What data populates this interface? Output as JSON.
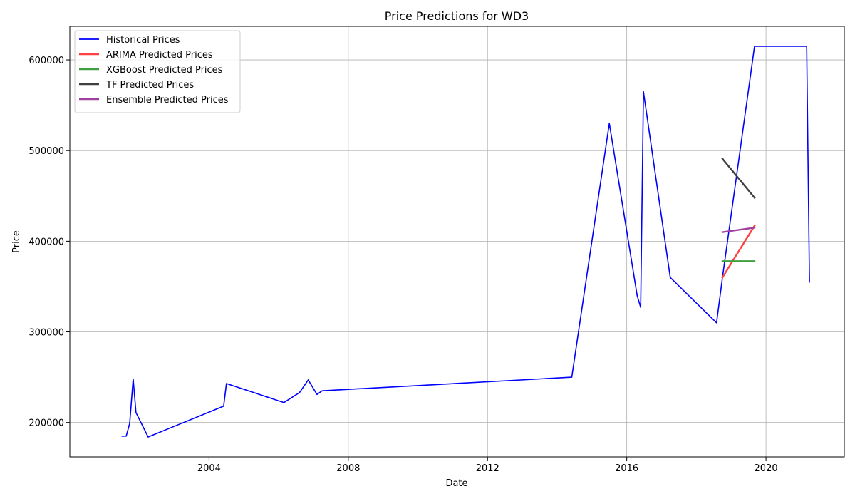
{
  "chart_data": {
    "type": "line",
    "title": "Price Predictions for WD3",
    "xlabel": "Date",
    "ylabel": "Price",
    "xlim": [
      2000.0,
      2022.25
    ],
    "ylim": [
      162000,
      637000
    ],
    "x_ticks": [
      2004,
      2008,
      2012,
      2016,
      2020
    ],
    "y_ticks": [
      200000,
      300000,
      400000,
      500000,
      600000
    ],
    "grid": true,
    "legend_position": "top-left",
    "series": [
      {
        "name": "Historical Prices",
        "color": "#0000ff",
        "points": [
          [
            2001.5,
            185000
          ],
          [
            2001.62,
            185000
          ],
          [
            2001.72,
            199000
          ],
          [
            2001.82,
            248000
          ],
          [
            2001.9,
            211000
          ],
          [
            2002.25,
            184000
          ],
          [
            2004.42,
            218000
          ],
          [
            2004.5,
            243000
          ],
          [
            2006.15,
            222000
          ],
          [
            2006.6,
            233000
          ],
          [
            2006.85,
            247000
          ],
          [
            2007.1,
            231000
          ],
          [
            2007.25,
            235000
          ],
          [
            2014.42,
            250000
          ],
          [
            2015.5,
            530000
          ],
          [
            2016.3,
            340000
          ],
          [
            2016.4,
            327000
          ],
          [
            2016.48,
            565000
          ],
          [
            2017.25,
            360000
          ],
          [
            2018.58,
            310000
          ],
          [
            2018.75,
            360000
          ],
          [
            2019.67,
            615000
          ],
          [
            2021.17,
            615000
          ],
          [
            2021.25,
            355000
          ]
        ]
      },
      {
        "name": "ARIMA Predicted Prices",
        "color": "#ff4040",
        "points": [
          [
            2018.75,
            360000
          ],
          [
            2019.67,
            417000
          ]
        ]
      },
      {
        "name": "XGBoost Predicted Prices",
        "color": "#40a040",
        "points": [
          [
            2018.75,
            378000
          ],
          [
            2019.67,
            378000
          ]
        ]
      },
      {
        "name": "TF Predicted Prices",
        "color": "#404040",
        "points": [
          [
            2018.75,
            491000
          ],
          [
            2019.67,
            448000
          ]
        ]
      },
      {
        "name": "Ensemble Predicted Prices",
        "color": "#a040a0",
        "points": [
          [
            2018.75,
            410000
          ],
          [
            2019.67,
            415000
          ]
        ]
      }
    ]
  }
}
